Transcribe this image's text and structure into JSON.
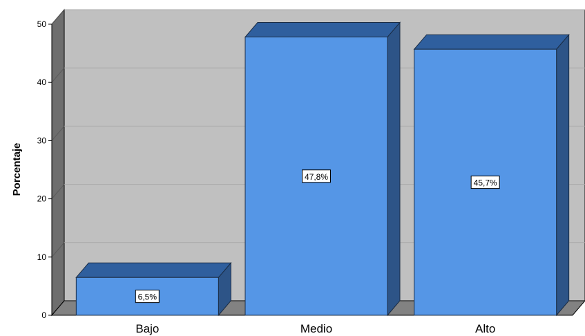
{
  "chart_data": {
    "type": "bar",
    "categories": [
      "Bajo",
      "Medio",
      "Alto"
    ],
    "values": [
      6.5,
      47.8,
      45.7
    ],
    "data_labels": [
      "6,5%",
      "47,8%",
      "45,7%"
    ],
    "title": "",
    "xlabel": "",
    "ylabel": "Porcentaje",
    "ylim": [
      0,
      50
    ],
    "yticks": [
      "0",
      "10",
      "20",
      "30",
      "40",
      "50"
    ],
    "grid": true,
    "style": "3d",
    "colors": {
      "bar_front": "#5596e6",
      "bar_top": "#2f5f9e",
      "bar_side": "#2d5487",
      "plot_back": "#c0c0c0",
      "plot_left_wall": "#6e6e6e",
      "plot_floor": "#828282",
      "gridline": "#a8a8a8"
    }
  }
}
